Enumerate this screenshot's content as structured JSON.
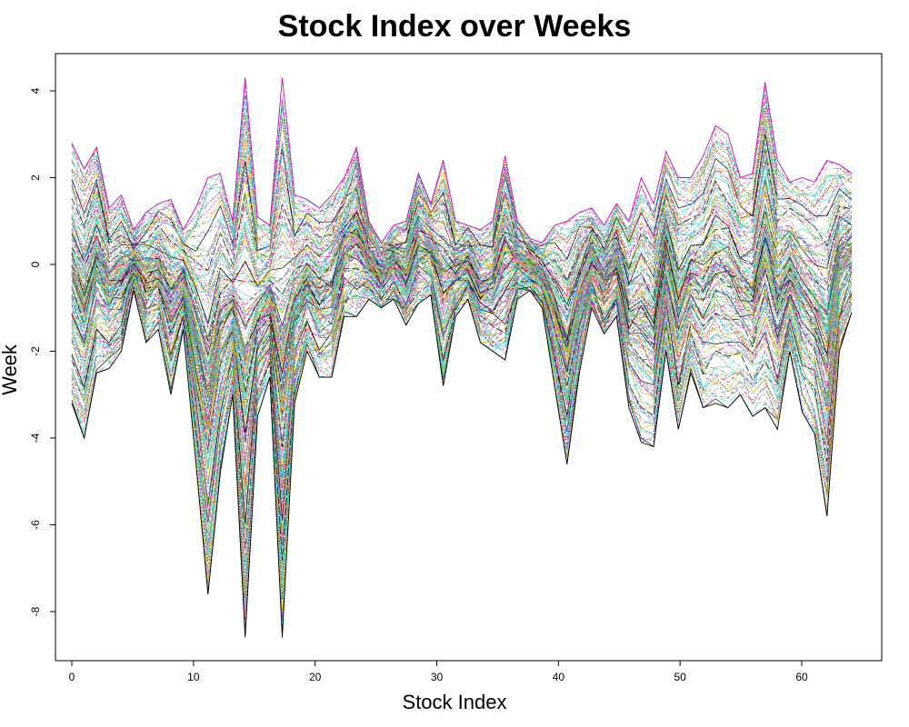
{
  "chart_data": {
    "type": "line",
    "title": "Stock Index over Weeks",
    "xlabel": "Stock Index",
    "ylabel": "Week",
    "xlim": [
      1,
      64
    ],
    "ylim": [
      -8.6,
      4.3
    ],
    "x_ticks": [
      0,
      10,
      20,
      30,
      40,
      50,
      60
    ],
    "y_ticks": [
      4,
      2,
      0,
      -2,
      -4,
      -6,
      -8
    ],
    "series_colors": [
      "#000000",
      "#DF536B",
      "#61D04F",
      "#2297E6",
      "#28E2E5",
      "#CD0BBC",
      "#F5C710",
      "#9E9E9E"
    ],
    "series_count": 160,
    "upper_envelope": [
      2.8,
      2.2,
      2.7,
      1.3,
      1.6,
      0.8,
      1.2,
      1.4,
      1.5,
      0.8,
      1.3,
      2.0,
      2.1,
      1.0,
      4.3,
      1.1,
      0.9,
      4.3,
      1.6,
      1.5,
      1.3,
      1.6,
      2.0,
      2.7,
      1.0,
      0.5,
      0.9,
      1.0,
      2.1,
      1.4,
      2.4,
      1.0,
      0.9,
      0.8,
      1.0,
      2.5,
      1.0,
      0.6,
      0.5,
      0.9,
      1.0,
      1.2,
      1.3,
      0.9,
      1.4,
      1.0,
      2.0,
      1.4,
      2.6,
      2.0,
      2.0,
      2.5,
      3.2,
      3.0,
      2.0,
      2.1,
      4.2,
      2.4,
      1.9,
      2.0,
      1.9,
      2.4,
      2.3,
      2.1
    ],
    "lower_envelope": [
      -3.2,
      -4.0,
      -2.5,
      -2.4,
      -2.0,
      -0.6,
      -1.8,
      -1.5,
      -3.0,
      -1.5,
      -4.5,
      -7.6,
      -4.8,
      -3.0,
      -8.6,
      -3.5,
      -2.6,
      -8.6,
      -3.2,
      -2.0,
      -2.6,
      -2.6,
      -1.2,
      -1.2,
      -0.8,
      -1.0,
      -0.8,
      -1.4,
      -0.9,
      -0.7,
      -2.8,
      -1.2,
      -0.8,
      -1.8,
      -2.0,
      -2.2,
      -0.8,
      -0.6,
      -1.0,
      -2.8,
      -4.6,
      -2.5,
      -1.0,
      -1.6,
      -1.2,
      -3.3,
      -4.1,
      -4.2,
      -2.0,
      -3.8,
      -2.5,
      -3.3,
      -3.2,
      -3.3,
      -3.0,
      -3.5,
      -3.3,
      -3.8,
      -2.0,
      -3.4,
      -3.9,
      -5.8,
      -2.0,
      -1.1
    ]
  }
}
